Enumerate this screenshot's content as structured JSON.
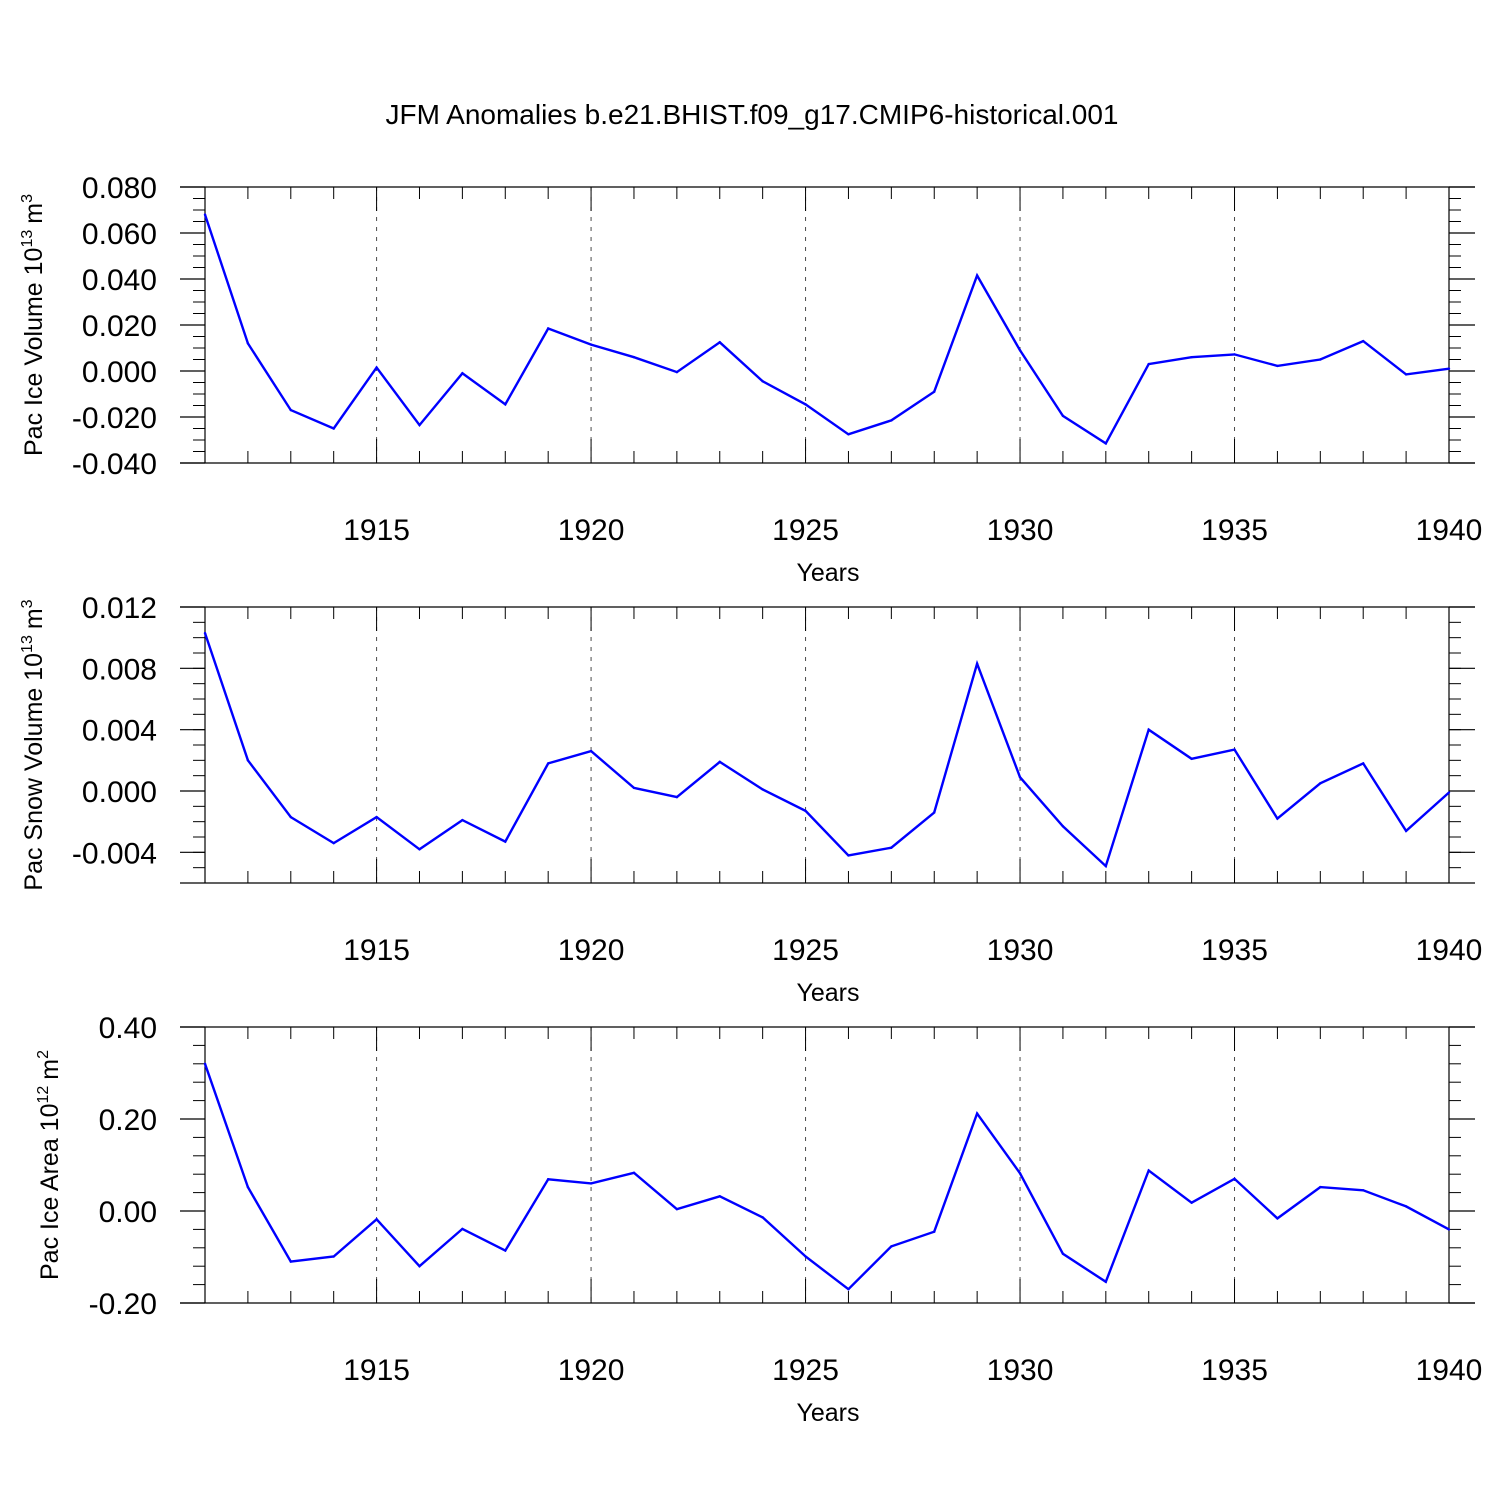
{
  "title": "JFM Anomalies b.e21.BHIST.f09_g17.CMIP6-historical.001",
  "colors": {
    "series": "#0000ff",
    "axis": "#000000",
    "grid": "#000000"
  },
  "chart_data": [
    {
      "type": "line",
      "name": "ice-volume",
      "ylabel_text": "Pac Ice Volume 10",
      "ylabel_exp": "13",
      "ylabel_unit": "m",
      "ylabel_unit_exp": "3",
      "xlabel": "Years",
      "xlim": [
        1911,
        1940
      ],
      "ylim": [
        -0.04,
        0.08
      ],
      "xticks": [
        1915,
        1920,
        1925,
        1930,
        1935,
        1940
      ],
      "xtick_labels": [
        "1915",
        "1920",
        "1925",
        "1930",
        "1935",
        "1940"
      ],
      "yticks": [
        -0.04,
        -0.02,
        0.0,
        0.02,
        0.04,
        0.06,
        0.08
      ],
      "ytick_labels": [
        "-0.040",
        "-0.020",
        "0.000",
        "0.020",
        "0.040",
        "0.060",
        "0.080"
      ],
      "y_minor_step": 0.005,
      "grid": "vertical dashed at major x ticks",
      "x": [
        1911,
        1912,
        1913,
        1914,
        1915,
        1916,
        1917,
        1918,
        1919,
        1920,
        1921,
        1922,
        1923,
        1924,
        1925,
        1926,
        1927,
        1928,
        1929,
        1930,
        1931,
        1932,
        1933,
        1934,
        1935,
        1936,
        1937,
        1938,
        1939,
        1940
      ],
      "values": [
        0.068,
        0.012,
        -0.017,
        -0.025,
        0.0015,
        -0.0235,
        -0.001,
        -0.0145,
        0.0185,
        0.0115,
        0.006,
        -0.0005,
        0.0125,
        -0.0045,
        -0.0145,
        -0.0275,
        -0.0215,
        -0.009,
        0.0415,
        0.009,
        -0.0195,
        -0.0315,
        0.003,
        0.006,
        0.0072,
        0.0022,
        0.005,
        0.013,
        -0.0015,
        0.001
      ]
    },
    {
      "type": "line",
      "name": "snow-volume",
      "ylabel_text": "Pac Snow Volume 10",
      "ylabel_exp": "13",
      "ylabel_unit": "m",
      "ylabel_unit_exp": "3",
      "xlabel": "Years",
      "xlim": [
        1911,
        1940
      ],
      "ylim": [
        -0.006,
        0.012
      ],
      "xticks": [
        1915,
        1920,
        1925,
        1930,
        1935,
        1940
      ],
      "xtick_labels": [
        "1915",
        "1920",
        "1925",
        "1930",
        "1935",
        "1940"
      ],
      "yticks": [
        -0.004,
        0.0,
        0.004,
        0.008,
        0.012
      ],
      "ytick_labels": [
        "-0.004",
        "0.000",
        "0.004",
        "0.008",
        "0.012"
      ],
      "y_minor_step": 0.001,
      "grid": "vertical dashed at major x ticks",
      "x": [
        1911,
        1912,
        1913,
        1914,
        1915,
        1916,
        1917,
        1918,
        1919,
        1920,
        1921,
        1922,
        1923,
        1924,
        1925,
        1926,
        1927,
        1928,
        1929,
        1930,
        1931,
        1932,
        1933,
        1934,
        1935,
        1936,
        1937,
        1938,
        1939,
        1940
      ],
      "values": [
        0.0103,
        0.002,
        -0.0017,
        -0.0034,
        -0.0017,
        -0.0038,
        -0.0019,
        -0.0033,
        0.0018,
        0.0026,
        0.0002,
        -0.0004,
        0.0019,
        0.0001,
        -0.0013,
        -0.0042,
        -0.0037,
        -0.0014,
        0.0083,
        0.0009,
        -0.0023,
        -0.0049,
        0.004,
        0.0021,
        0.0027,
        -0.0018,
        0.0005,
        0.0018,
        -0.0026,
        -0.0001
      ]
    },
    {
      "type": "line",
      "name": "ice-area",
      "ylabel_text": "Pac Ice Area 10",
      "ylabel_exp": "12",
      "ylabel_unit": "m",
      "ylabel_unit_exp": "2",
      "xlabel": "Years",
      "xlim": [
        1911,
        1940
      ],
      "ylim": [
        -0.2,
        0.4
      ],
      "xticks": [
        1915,
        1920,
        1925,
        1930,
        1935,
        1940
      ],
      "xtick_labels": [
        "1915",
        "1920",
        "1925",
        "1930",
        "1935",
        "1940"
      ],
      "yticks": [
        -0.2,
        0.0,
        0.2,
        0.4
      ],
      "ytick_labels": [
        "-0.20",
        "0.00",
        "0.20",
        "0.40"
      ],
      "y_minor_step": 0.04,
      "grid": "vertical dashed at major x ticks",
      "x": [
        1911,
        1912,
        1913,
        1914,
        1915,
        1916,
        1917,
        1918,
        1919,
        1920,
        1921,
        1922,
        1923,
        1924,
        1925,
        1926,
        1927,
        1928,
        1929,
        1930,
        1931,
        1932,
        1933,
        1934,
        1935,
        1936,
        1937,
        1938,
        1939,
        1940
      ],
      "values": [
        0.32,
        0.052,
        -0.11,
        -0.099,
        -0.018,
        -0.12,
        -0.039,
        -0.086,
        0.069,
        0.06,
        0.083,
        0.004,
        0.032,
        -0.014,
        -0.099,
        -0.17,
        -0.077,
        -0.045,
        0.212,
        0.082,
        -0.093,
        -0.154,
        0.088,
        0.018,
        0.07,
        -0.016,
        0.052,
        0.045,
        0.01,
        -0.04
      ]
    }
  ]
}
